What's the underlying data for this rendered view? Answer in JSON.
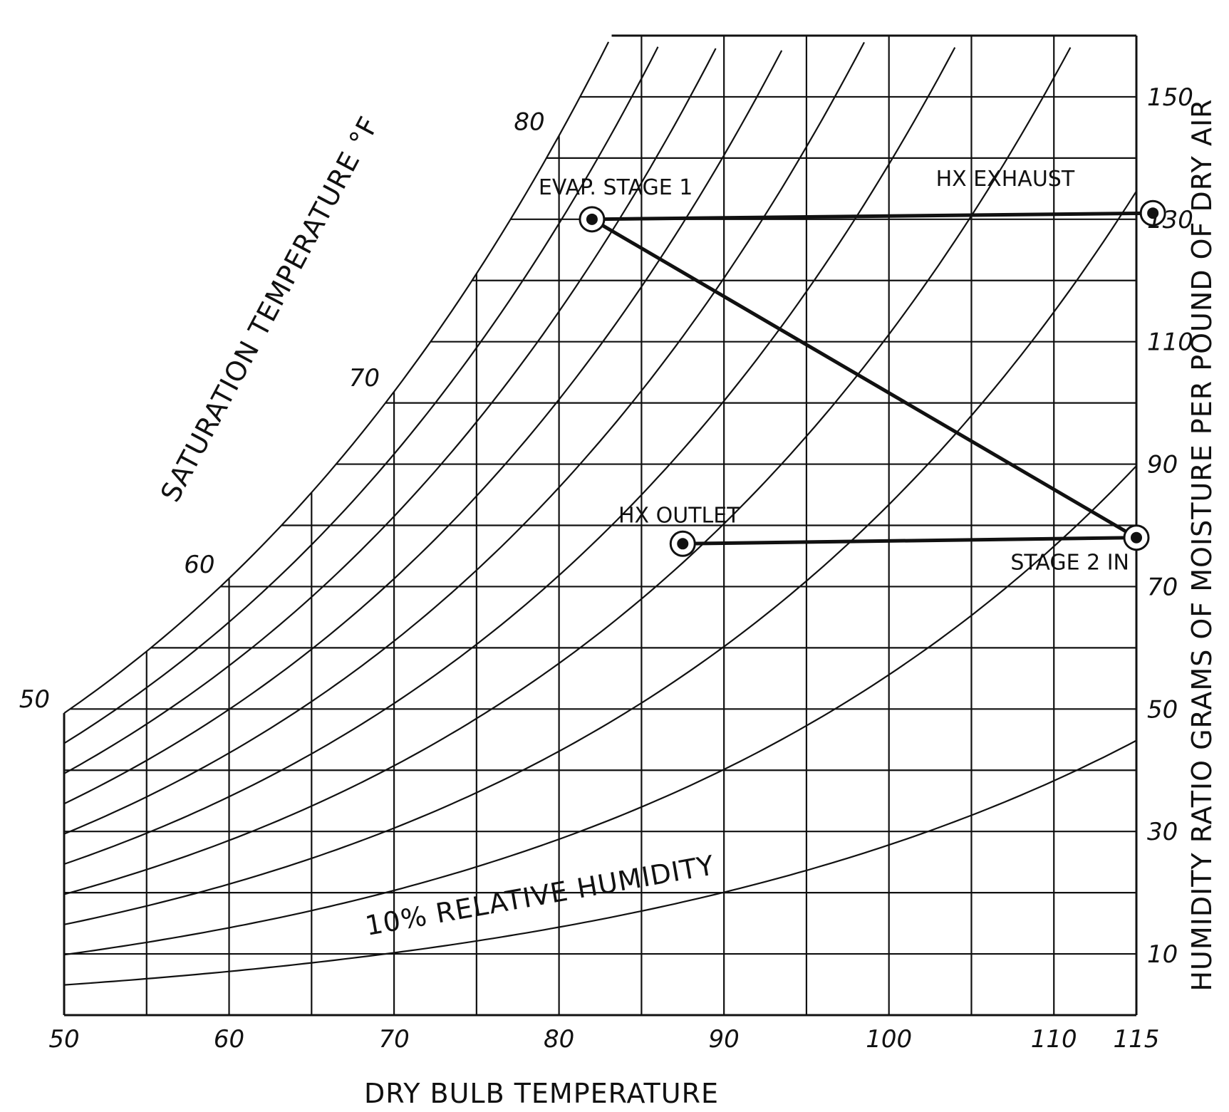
{
  "chart_data": {
    "type": "line",
    "title": "",
    "xlabel": "DRY BULB TEMPERATURE",
    "ylabel": "HUMIDITY RATIO  GRAMS OF MOISTURE PER POUND OF DRY AIR",
    "saturation_label": "SATURATION TEMPERATURE °F",
    "xlim": [
      50,
      115
    ],
    "ylim": [
      0,
      160
    ],
    "x_ticks": [
      "50",
      "60",
      "70",
      "80",
      "90",
      "100",
      "110",
      "115"
    ],
    "y_ticks": [
      "10",
      "30",
      "50",
      "70",
      "90",
      "110",
      "130",
      "150"
    ],
    "saturation_ticks": [
      "50",
      "60",
      "70",
      "80"
    ],
    "grid": true,
    "rh_curve_label": "10% RELATIVE HUMIDITY",
    "points": [
      {
        "name": "EVAP. STAGE 1",
        "x": 82,
        "y": 130
      },
      {
        "name": "HX EXHAUST",
        "x": 116,
        "y": 131
      },
      {
        "name": "STAGE 2 IN",
        "x": 115,
        "y": 78
      },
      {
        "name": "HX OUTLET",
        "x": 87.5,
        "y": 77
      }
    ],
    "process_lines": [
      {
        "from": "EVAP. STAGE 1",
        "to": "HX EXHAUST"
      },
      {
        "from": "EVAP. STAGE 1",
        "to": "STAGE 2 IN"
      },
      {
        "from": "HX OUTLET",
        "to": "STAGE 2 IN"
      }
    ]
  }
}
